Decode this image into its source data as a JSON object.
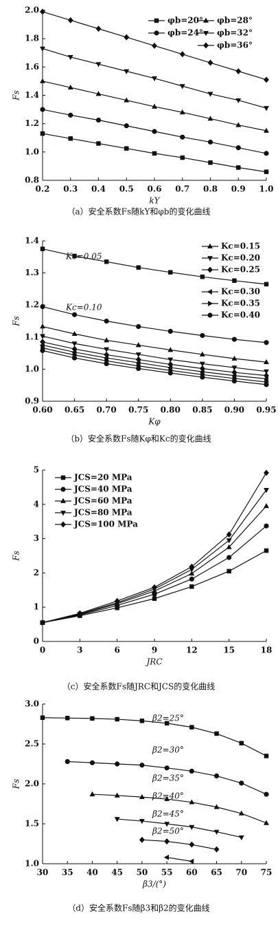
{
  "chart_data": [
    {
      "type": "line",
      "caption": "（a）安全系数Fs随kY和φb的变化曲线",
      "xlabel": "kY",
      "ylabel": "Fs",
      "xlim": [
        0.2,
        1.0
      ],
      "ylim": [
        0.8,
        2.0
      ],
      "xticks": [
        0.2,
        0.3,
        0.4,
        0.5,
        0.6,
        0.7,
        0.8,
        0.9,
        {
          "value": 1,
          "label": "1.0"
        }
      ],
      "yticks": [
        0.8,
        {
          "value": 1,
          "label": "1.0"
        },
        1.2,
        1.4,
        1.6,
        1.8,
        {
          "value": 2,
          "label": "2.0"
        }
      ],
      "x": [
        0.2,
        0.3,
        0.4,
        0.5,
        0.6,
        0.7,
        0.8,
        0.9,
        1.0
      ],
      "series": [
        {
          "name": "φb=20°",
          "color": "#111111",
          "marker": "square",
          "values": [
            1.13,
            1.095,
            1.06,
            1.025,
            0.99,
            0.96,
            0.925,
            0.89,
            0.86
          ]
        },
        {
          "name": "φb=24°",
          "color": "#111111",
          "marker": "circle",
          "values": [
            1.3,
            1.26,
            1.225,
            1.185,
            1.145,
            1.105,
            1.07,
            1.03,
            0.99
          ]
        },
        {
          "name": "φb=28°",
          "color": "#111111",
          "marker": "triangle-up",
          "values": [
            1.5,
            1.455,
            1.41,
            1.365,
            1.32,
            1.28,
            1.235,
            1.19,
            1.15
          ]
        },
        {
          "name": "φb=32°",
          "color": "#111111",
          "marker": "triangle-down",
          "values": [
            1.73,
            1.67,
            1.62,
            1.57,
            1.52,
            1.465,
            1.41,
            1.365,
            1.31
          ]
        },
        {
          "name": "φb=36°",
          "color": "#111111",
          "marker": "diamond",
          "values": [
            1.99,
            1.93,
            1.87,
            1.81,
            1.75,
            1.69,
            1.63,
            1.57,
            1.51
          ]
        }
      ]
    },
    {
      "type": "line",
      "caption": "（b）安全系数Fs随Kφ和Kc的变化曲线",
      "xlabel": "Kφ",
      "ylabel": "Fs",
      "xlim": [
        0.6,
        0.95
      ],
      "ylim": [
        0.9,
        1.4
      ],
      "xticks": [
        {
          "value": 0.6,
          "label": "0.60"
        },
        0.65,
        {
          "value": 0.7,
          "label": "0.70"
        },
        0.75,
        {
          "value": 0.8,
          "label": "0.80"
        },
        0.85,
        {
          "value": 0.9,
          "label": "0.90"
        },
        0.95
      ],
      "yticks": [
        0.9,
        {
          "value": 1,
          "label": "1.0"
        },
        1.1,
        1.2,
        1.3,
        1.4
      ],
      "x": [
        0.6,
        0.65,
        0.7,
        0.75,
        0.8,
        0.85,
        0.9,
        0.95
      ],
      "series": [
        {
          "name": "Kc=0.05",
          "color": "#111111",
          "marker": "square",
          "label_position": "inline",
          "values": [
            1.375,
            1.353,
            1.335,
            1.317,
            1.302,
            1.288,
            1.276,
            1.265
          ]
        },
        {
          "name": "Kc=0.10",
          "color": "#111111",
          "marker": "circle",
          "label_position": "inline",
          "values": [
            1.195,
            1.17,
            1.15,
            1.133,
            1.118,
            1.105,
            1.093,
            1.083
          ]
        },
        {
          "name": "Kc=0.15",
          "color": "#111111",
          "marker": "triangle-up",
          "values": [
            1.133,
            1.11,
            1.09,
            1.075,
            1.06,
            1.046,
            1.033,
            1.022
          ]
        },
        {
          "name": "Kc=0.20",
          "color": "#111111",
          "marker": "triangle-down",
          "values": [
            1.103,
            1.08,
            1.062,
            1.046,
            1.03,
            1.017,
            1.005,
            0.993
          ]
        },
        {
          "name": "Kc=0.25",
          "color": "#111111",
          "marker": "diamond",
          "values": [
            1.085,
            1.063,
            1.045,
            1.03,
            1.015,
            1.002,
            0.99,
            0.98
          ]
        },
        {
          "name": "Kc=0.30",
          "color": "#111111",
          "marker": "triangle-left",
          "values": [
            1.075,
            1.053,
            1.035,
            1.02,
            1.005,
            0.992,
            0.98,
            0.97
          ]
        },
        {
          "name": "Kc=0.35",
          "color": "#111111",
          "marker": "triangle-right",
          "values": [
            1.066,
            1.044,
            1.026,
            1.01,
            0.996,
            0.983,
            0.971,
            0.96
          ]
        },
        {
          "name": "Kc=0.40",
          "color": "#111111",
          "marker": "circle",
          "values": [
            1.058,
            1.035,
            1.017,
            1.002,
            0.988,
            0.975,
            0.963,
            0.952
          ]
        }
      ]
    },
    {
      "type": "line",
      "caption": "（c）安全系数Fs随JRC和JCS的变化曲线",
      "xlabel": "JRC",
      "ylabel": "Fs",
      "xlim": [
        0,
        18
      ],
      "ylim": [
        0,
        5
      ],
      "xticks": [
        0,
        3,
        6,
        9,
        12,
        15,
        18
      ],
      "yticks": [
        0,
        1,
        2,
        3,
        4,
        5
      ],
      "x": [
        0,
        3,
        6,
        9,
        12,
        15,
        18
      ],
      "series": [
        {
          "name": "JCS=20 MPa",
          "color": "#111111",
          "marker": "square",
          "values": [
            0.55,
            0.75,
            0.98,
            1.25,
            1.6,
            2.05,
            2.65
          ]
        },
        {
          "name": "JCS=40 MPa",
          "color": "#111111",
          "marker": "circle",
          "values": [
            0.55,
            0.77,
            1.05,
            1.38,
            1.82,
            2.45,
            3.37
          ]
        },
        {
          "name": "JCS=60 MPa",
          "color": "#111111",
          "marker": "triangle-up",
          "values": [
            0.55,
            0.79,
            1.1,
            1.47,
            1.98,
            2.75,
            3.95
          ]
        },
        {
          "name": "JCS=80 MPa",
          "color": "#111111",
          "marker": "triangle-down",
          "values": [
            0.55,
            0.8,
            1.13,
            1.53,
            2.1,
            2.95,
            4.42
          ]
        },
        {
          "name": "JCS=100 MPa",
          "color": "#111111",
          "marker": "diamond",
          "values": [
            0.55,
            0.82,
            1.18,
            1.58,
            2.18,
            3.12,
            4.92
          ]
        }
      ]
    },
    {
      "type": "line",
      "caption": "（d）安全系数Fs随β3和β2的变化曲线",
      "xlabel": "β3/(°)",
      "ylabel": "Fs",
      "xlim": [
        30,
        75
      ],
      "ylim": [
        1,
        3
      ],
      "xticks": [
        30,
        35,
        40,
        45,
        50,
        55,
        60,
        65,
        70,
        75
      ],
      "yticks": [
        {
          "value": 1,
          "label": "1.0"
        },
        1.5,
        {
          "value": 2,
          "label": "2.0"
        },
        2.5,
        {
          "value": 3,
          "label": "3.0"
        }
      ],
      "series": [
        {
          "name": "β2=25°",
          "color": "#111111",
          "marker": "square",
          "label_position": "inline",
          "x": [
            30,
            35,
            40,
            45,
            50,
            55,
            60,
            65,
            70,
            75
          ],
          "values": [
            2.83,
            2.825,
            2.82,
            2.81,
            2.79,
            2.76,
            2.71,
            2.63,
            2.51,
            2.35
          ]
        },
        {
          "name": "β2=30°",
          "color": "#111111",
          "marker": "circle",
          "label_position": "inline",
          "x": [
            35,
            40,
            45,
            50,
            55,
            60,
            65,
            70,
            75
          ],
          "values": [
            2.28,
            2.265,
            2.25,
            2.235,
            2.2,
            2.16,
            2.1,
            2.01,
            1.87
          ]
        },
        {
          "name": "β2=35°",
          "color": "#111111",
          "marker": "triangle-up",
          "label_position": "inline",
          "x": [
            40,
            45,
            50,
            55,
            60,
            65,
            70,
            75
          ],
          "values": [
            1.87,
            1.855,
            1.835,
            1.81,
            1.77,
            1.71,
            1.63,
            1.51
          ]
        },
        {
          "name": "β2=40°",
          "color": "#111111",
          "marker": "triangle-down",
          "label_position": "inline",
          "x": [
            45,
            50,
            55,
            60,
            65,
            70
          ],
          "values": [
            1.56,
            1.535,
            1.5,
            1.46,
            1.4,
            1.33
          ]
        },
        {
          "name": "β2=45°",
          "color": "#111111",
          "marker": "diamond",
          "label_position": "inline",
          "x": [
            50,
            55,
            60,
            65
          ],
          "values": [
            1.3,
            1.28,
            1.24,
            1.18
          ]
        },
        {
          "name": "β2=50°",
          "color": "#111111",
          "marker": "triangle-left",
          "label_position": "inline",
          "x": [
            55,
            60
          ],
          "values": [
            1.08,
            1.03
          ]
        }
      ]
    }
  ]
}
